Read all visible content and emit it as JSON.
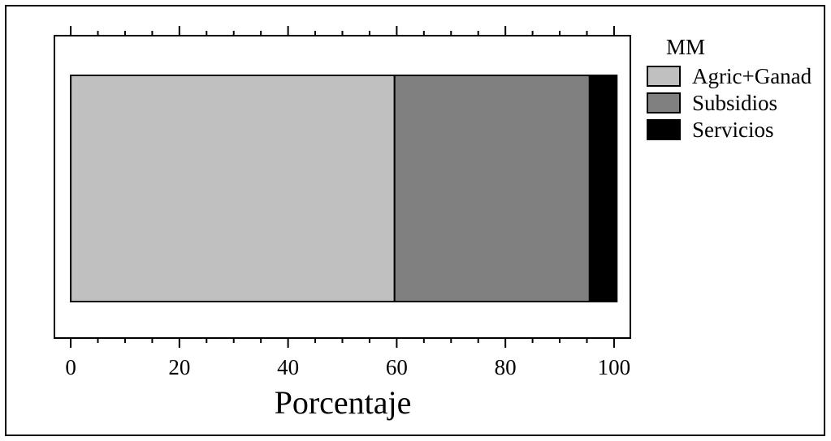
{
  "chart_data": {
    "type": "bar",
    "orientation": "horizontal",
    "stacked": true,
    "categories": [
      "MM"
    ],
    "series": [
      {
        "name": "Agric+Ganad",
        "values": [
          59.6
        ],
        "color": "#c0c0c0"
      },
      {
        "name": "Subsidios",
        "values": [
          35.9
        ],
        "color": "#808080"
      },
      {
        "name": "Servicios",
        "values": [
          5.0
        ],
        "color": "#000000"
      }
    ],
    "xlabel": "Porcentaje",
    "ylabel": "",
    "xlim": [
      -3,
      103
    ],
    "xticks": [
      0,
      20,
      40,
      60,
      80,
      100
    ],
    "x_minor_step": 5,
    "grid": false,
    "legend": {
      "title": "MM",
      "position": "right-top"
    }
  }
}
